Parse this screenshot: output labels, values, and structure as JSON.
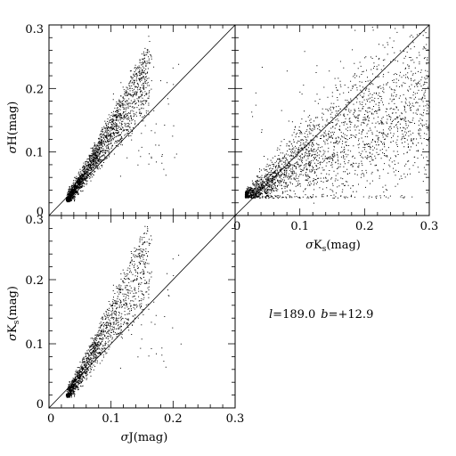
{
  "chart_data": [
    {
      "type": "scatter",
      "panel": "top-left",
      "xlabel": "σJ(mag)",
      "ylabel": "σH(mag)",
      "xlim": [
        0,
        0.3
      ],
      "ylim": [
        0,
        0.3
      ],
      "xticks": [
        0,
        0.1,
        0.2,
        0.3
      ],
      "yticks": [
        0,
        0.1,
        0.2,
        0.3
      ],
      "x_ticklabels_shown": false,
      "y_ticklabels": [
        "0",
        "0.1",
        "0.2",
        "0.3"
      ],
      "reference_line": "y = x",
      "approx_point_count": 12000,
      "distribution": {
        "x_min": 0.03,
        "x_max": 0.16,
        "slope_at_xmin": 1.0,
        "slope_at_xmax": 1.8,
        "floor": 0.025,
        "tail_x_max": 0.22
      }
    },
    {
      "type": "scatter",
      "panel": "top-right",
      "xlabel": "σK_s(mag)",
      "ylabel": "σH(mag)",
      "xlim": [
        0,
        0.3
      ],
      "ylim": [
        0,
        0.3
      ],
      "xticks": [
        0,
        0.1,
        0.2,
        0.3
      ],
      "yticks": [
        0,
        0.1,
        0.2,
        0.3
      ],
      "x_ticklabels": [
        "0",
        "0.1",
        "0.2",
        "0.3"
      ],
      "y_ticklabels_shown": false,
      "reference_line": "y = x",
      "approx_point_count": 12000,
      "distribution": {
        "x_min": 0.015,
        "x_max": 0.3,
        "floor": 0.028,
        "upper_plateau": 0.2
      }
    },
    {
      "type": "scatter",
      "panel": "bottom-left",
      "xlabel": "σJ(mag)",
      "ylabel": "σK_s(mag)",
      "xlim": [
        0,
        0.3
      ],
      "ylim": [
        0,
        0.3
      ],
      "xticks": [
        0,
        0.1,
        0.2,
        0.3
      ],
      "yticks": [
        0,
        0.1,
        0.2,
        0.3
      ],
      "x_ticklabels": [
        "0",
        "0.1",
        "0.2",
        "0.3"
      ],
      "y_ticklabels": [
        "0",
        "0.1",
        "0.2",
        "0.3"
      ],
      "reference_line": "y = x",
      "approx_point_count": 12000,
      "distribution": {
        "x_min": 0.03,
        "x_max": 0.16,
        "slope_at_xmin": 1.0,
        "slope_at_xmax": 2.0,
        "floor": 0.02,
        "tail_x_max": 0.22
      }
    }
  ],
  "labels": {
    "top_left_ylabel": {
      "sigma": "σ",
      "text": "H(mag)"
    },
    "bottom_left_ylabel": {
      "sigma": "σ",
      "text": "K",
      "sub": "s",
      "tail": "(mag)"
    },
    "top_right_xlabel": {
      "sigma": "σ",
      "text": "K",
      "sub": "s",
      "tail": "(mag)"
    },
    "bottom_left_xlabel": {
      "sigma": "σ",
      "text": "J(mag)"
    }
  },
  "annotation": {
    "l_symbol": "l",
    "l_value": "=189.0",
    "b_symbol": "b",
    "b_value": "=+12.9"
  }
}
